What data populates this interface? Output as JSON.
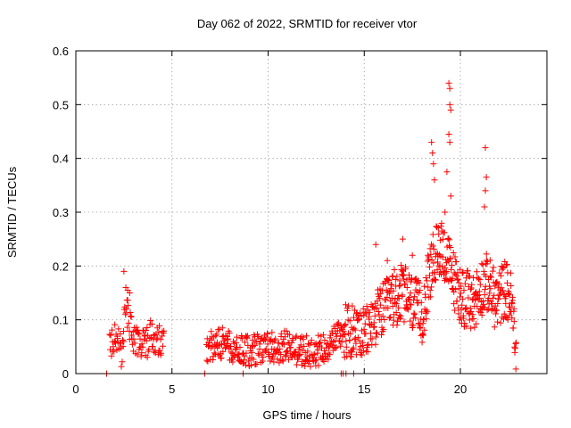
{
  "chart_data": {
    "type": "scatter",
    "title": "Day 062 of 2022, SRMTID for receiver vtor",
    "xlabel": "GPS time / hours",
    "ylabel": "SRMTID / TECUs",
    "xlim": [
      0,
      24.5
    ],
    "ylim": [
      0,
      0.6
    ],
    "x_ticks": [
      0,
      5,
      10,
      15,
      20
    ],
    "x_tick_labels": [
      "0",
      "5",
      "10",
      "15",
      "20"
    ],
    "y_ticks": [
      0,
      0.1,
      0.2,
      0.3,
      0.4,
      0.5,
      0.6
    ],
    "y_tick_labels": [
      "0",
      "0.1",
      "0.2",
      "0.3",
      "0.4",
      "0.5",
      "0.6"
    ],
    "grid": true,
    "marker": "+",
    "series": [
      {
        "name": "SRMTID",
        "color": "#ff0000",
        "segments": [
          {
            "start": 1.75,
            "end": 4.6,
            "step": 0.025,
            "profile": [
              [
                1.75,
                0.05
              ],
              [
                2.0,
                0.07
              ],
              [
                2.4,
                0.04
              ],
              [
                2.6,
                0.13
              ],
              [
                2.85,
                0.08
              ],
              [
                3.3,
                0.05
              ],
              [
                3.7,
                0.055
              ],
              [
                3.9,
                0.08
              ],
              [
                4.3,
                0.06
              ],
              [
                4.6,
                0.05
              ]
            ],
            "spread": 0.032
          },
          {
            "start": 6.8,
            "end": 13.9,
            "step": 0.022,
            "profile": [
              [
                6.8,
                0.04
              ],
              [
                7.3,
                0.06
              ],
              [
                8.0,
                0.05
              ],
              [
                9.0,
                0.04
              ],
              [
                10.0,
                0.05
              ],
              [
                11.0,
                0.05
              ],
              [
                12.0,
                0.04
              ],
              [
                12.8,
                0.045
              ],
              [
                13.3,
                0.06
              ],
              [
                13.9,
                0.08
              ]
            ],
            "spread": 0.03
          },
          {
            "start": 13.9,
            "end": 16.5,
            "step": 0.018,
            "profile": [
              [
                13.9,
                0.08
              ],
              [
                14.5,
                0.08
              ],
              [
                15.0,
                0.07
              ],
              [
                15.5,
                0.1
              ],
              [
                16.0,
                0.12
              ],
              [
                16.5,
                0.14
              ]
            ],
            "spread": 0.05
          },
          {
            "start": 16.5,
            "end": 22.9,
            "step": 0.016,
            "profile": [
              [
                16.5,
                0.14
              ],
              [
                17.0,
                0.15
              ],
              [
                17.5,
                0.13
              ],
              [
                18.0,
                0.11
              ],
              [
                18.5,
                0.2
              ],
              [
                19.0,
                0.24
              ],
              [
                19.4,
                0.2
              ],
              [
                19.8,
                0.16
              ],
              [
                20.2,
                0.14
              ],
              [
                20.7,
                0.13
              ],
              [
                21.0,
                0.16
              ],
              [
                21.4,
                0.17
              ],
              [
                21.9,
                0.13
              ],
              [
                22.3,
                0.16
              ],
              [
                22.6,
                0.14
              ],
              [
                22.9,
                0.05
              ]
            ],
            "spread": 0.055
          }
        ],
        "zero_points_x": [
          1.6,
          6.7,
          8.7,
          13.8,
          13.9,
          14.05,
          14.45
        ],
        "peak_points": [
          [
            2.5,
            0.19
          ],
          [
            2.6,
            0.16
          ],
          [
            2.7,
            0.155
          ],
          [
            2.8,
            0.15
          ],
          [
            18.5,
            0.43
          ],
          [
            18.55,
            0.41
          ],
          [
            18.6,
            0.39
          ],
          [
            18.65,
            0.36
          ],
          [
            19.4,
            0.54
          ],
          [
            19.45,
            0.53
          ],
          [
            19.45,
            0.5
          ],
          [
            19.5,
            0.49
          ],
          [
            19.4,
            0.445
          ],
          [
            19.45,
            0.43
          ],
          [
            19.3,
            0.375
          ],
          [
            19.5,
            0.33
          ],
          [
            19.2,
            0.3
          ],
          [
            21.3,
            0.42
          ],
          [
            21.35,
            0.365
          ],
          [
            21.3,
            0.34
          ],
          [
            21.25,
            0.31
          ],
          [
            15.6,
            0.24
          ],
          [
            16.2,
            0.21
          ],
          [
            17.0,
            0.25
          ],
          [
            17.5,
            0.22
          ]
        ]
      }
    ]
  }
}
